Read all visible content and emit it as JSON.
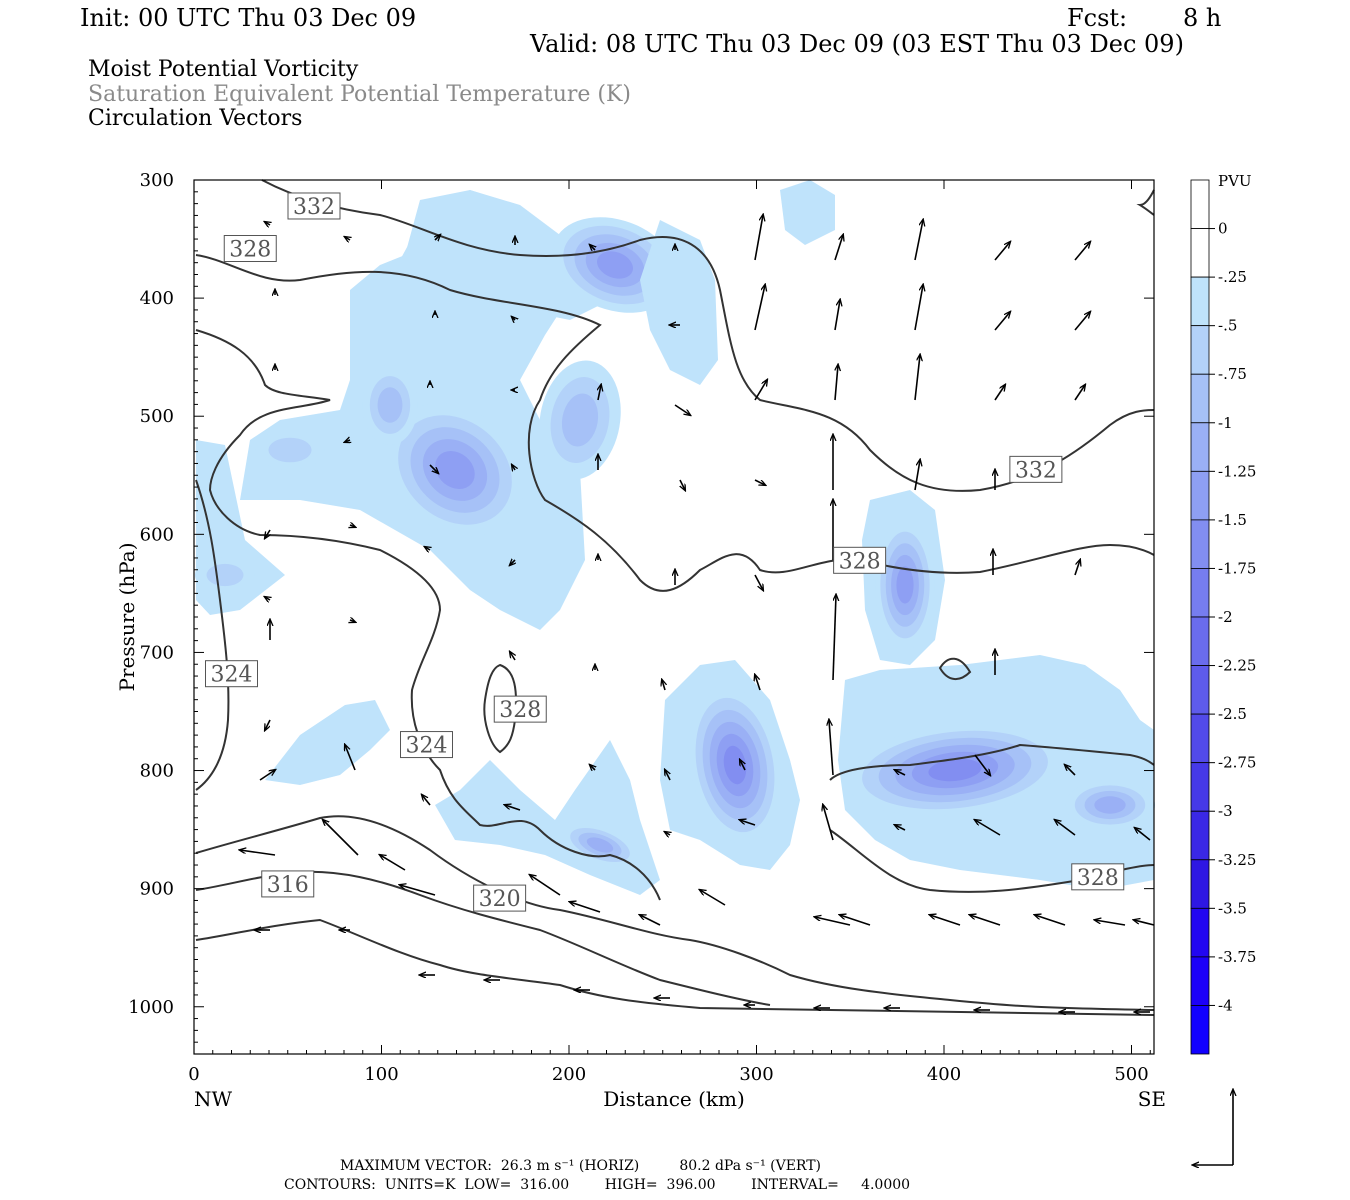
{
  "header": {
    "init": "Init: 00 UTC Thu 03 Dec 09",
    "fcst_label": "Fcst:",
    "fcst_value": "8 h",
    "valid": "Valid: 08 UTC Thu 03 Dec 09 (03 EST Thu 03 Dec 09)"
  },
  "fields": {
    "line1": "Moist Potential Vorticity",
    "line2": "Saturation Equivalent Potential Temperature (K)",
    "line3": "Circulation Vectors"
  },
  "footer": {
    "max_vector": "MAXIMUM VECTOR:  26.3 m s⁻¹ (HORIZ)         80.2 dPa s⁻¹ (VERT)",
    "contours": "CONTOURS:  UNITS=K  LOW=  316.00        HIGH=  396.00        INTERVAL=     4.0000"
  },
  "chart_data": {
    "type": "contour",
    "xlabel": "Distance (km)",
    "ylabel": "Pressure (hPa)",
    "xlim": [
      0,
      512
    ],
    "ylim": [
      1040,
      300
    ],
    "x_ticks": [
      "0",
      "100",
      "200",
      "300",
      "400",
      "500"
    ],
    "y_ticks": [
      "300",
      "400",
      "500",
      "600",
      "700",
      "800",
      "900",
      "1000"
    ],
    "x_start_label": "NW",
    "x_end_label": "SE",
    "colorbar": {
      "unit": "PVU",
      "levels": [
        "0",
        "-.25",
        "-.5",
        "-.75",
        "-1",
        "-1.25",
        "-1.5",
        "-1.75",
        "-2",
        "-2.25",
        "-2.5",
        "-2.75",
        "-3",
        "-3.25",
        "-3.5",
        "-3.75",
        "-4"
      ],
      "colors": [
        "#ffffff",
        "#bfe3fb",
        "#b3d2f9",
        "#a6c1f7",
        "#9ab0f5",
        "#8e9ff3",
        "#828ef1",
        "#767def",
        "#6a6ced",
        "#5e5beb",
        "#524ae9",
        "#4639e7",
        "#3a28e5",
        "#2e17e3",
        "#2206f1",
        "#1c00f8",
        "#1200ff"
      ]
    },
    "contour_labels": [
      {
        "text": "332",
        "x": 64,
        "p": 322
      },
      {
        "text": "328",
        "x": 30,
        "p": 358
      },
      {
        "text": "332",
        "x": 449,
        "p": 545
      },
      {
        "text": "328",
        "x": 355,
        "p": 622
      },
      {
        "text": "324",
        "x": 20,
        "p": 718
      },
      {
        "text": "328",
        "x": 174,
        "p": 748
      },
      {
        "text": "324",
        "x": 124,
        "p": 778
      },
      {
        "text": "316",
        "x": 50,
        "p": 896
      },
      {
        "text": "320",
        "x": 163,
        "p": 908
      },
      {
        "text": "328",
        "x": 482,
        "p": 890
      }
    ],
    "vector_key": "circulation vectors (horizontal / vertical)"
  }
}
